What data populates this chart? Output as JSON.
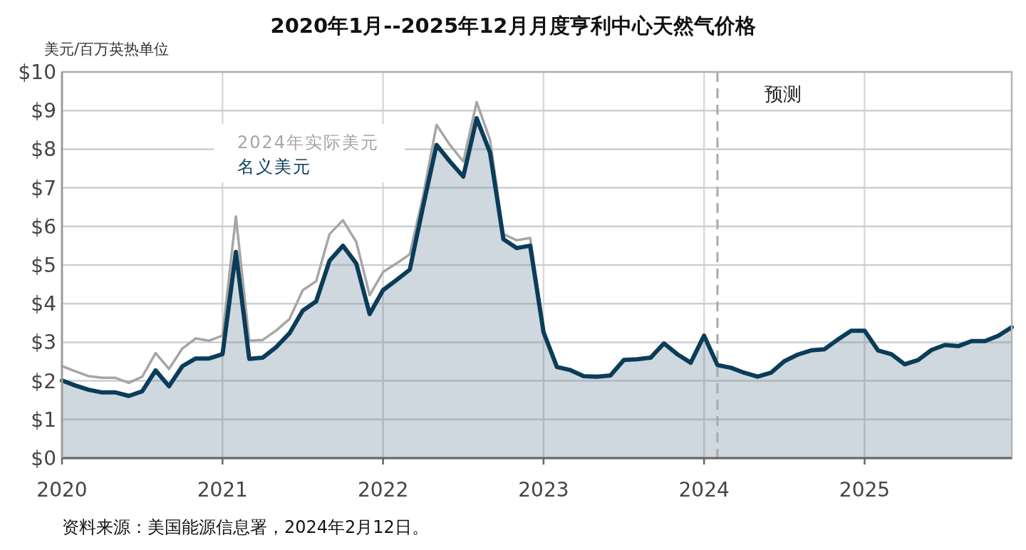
{
  "chart_data": {
    "type": "line",
    "title": "2020年1月--2025年12月月度亨利中心天然气价格",
    "ylabel": "美元/百万英热单位",
    "x": [
      "2020-01",
      "2020-02",
      "2020-03",
      "2020-04",
      "2020-05",
      "2020-06",
      "2020-07",
      "2020-08",
      "2020-09",
      "2020-10",
      "2020-11",
      "2020-12",
      "2021-01",
      "2021-02",
      "2021-03",
      "2021-04",
      "2021-05",
      "2021-06",
      "2021-07",
      "2021-08",
      "2021-09",
      "2021-10",
      "2021-11",
      "2021-12",
      "2022-01",
      "2022-02",
      "2022-03",
      "2022-04",
      "2022-05",
      "2022-06",
      "2022-07",
      "2022-08",
      "2022-09",
      "2022-10",
      "2022-11",
      "2022-12",
      "2023-01",
      "2023-02",
      "2023-03",
      "2023-04",
      "2023-05",
      "2023-06",
      "2023-07",
      "2023-08",
      "2023-09",
      "2023-10",
      "2023-11",
      "2023-12",
      "2024-01",
      "2024-02",
      "2024-03",
      "2024-04",
      "2024-05",
      "2024-06",
      "2024-07",
      "2024-08",
      "2024-09",
      "2024-10",
      "2024-11",
      "2024-12",
      "2025-01",
      "2025-02",
      "2025-03",
      "2025-04",
      "2025-05",
      "2025-06",
      "2025-07",
      "2025-08",
      "2025-09",
      "2025-10",
      "2025-11",
      "2025-12"
    ],
    "series": [
      {
        "name": "2024年实际美元",
        "color": "#a6a6a6",
        "values": [
          2.38,
          2.25,
          2.12,
          2.08,
          2.08,
          1.95,
          2.11,
          2.72,
          2.31,
          2.84,
          3.1,
          3.04,
          3.17,
          6.26,
          3.04,
          3.06,
          3.3,
          3.6,
          4.35,
          4.58,
          5.8,
          6.16,
          5.6,
          4.22,
          4.82,
          5.04,
          5.28,
          6.8,
          8.63,
          8.11,
          7.68,
          9.22,
          8.24,
          5.8,
          5.64,
          5.7,
          3.35,
          null,
          null,
          null,
          null,
          null,
          null,
          null,
          null,
          null,
          null,
          null,
          null,
          null,
          null,
          null,
          null,
          null,
          null,
          null,
          null,
          null,
          null,
          null,
          null,
          null,
          null,
          null,
          null,
          null,
          null,
          null,
          null,
          null,
          null,
          null
        ]
      },
      {
        "name": "名义美元",
        "type": "area",
        "color": "#0b3c5a",
        "values": [
          2.01,
          1.88,
          1.77,
          1.7,
          1.7,
          1.61,
          1.73,
          2.27,
          1.86,
          2.38,
          2.58,
          2.58,
          2.69,
          5.34,
          2.57,
          2.6,
          2.87,
          3.23,
          3.82,
          4.06,
          5.11,
          5.5,
          5.04,
          3.73,
          4.35,
          4.61,
          4.88,
          6.53,
          8.11,
          7.68,
          7.29,
          8.8,
          7.91,
          5.67,
          5.44,
          5.5,
          3.26,
          2.36,
          2.28,
          2.12,
          2.11,
          2.14,
          2.54,
          2.56,
          2.6,
          2.97,
          2.69,
          2.47,
          3.17,
          2.41,
          2.34,
          2.21,
          2.11,
          2.21,
          2.51,
          2.68,
          2.79,
          2.82,
          3.07,
          3.3,
          3.3,
          2.79,
          2.69,
          2.43,
          2.54,
          2.8,
          2.93,
          2.9,
          3.03,
          3.03,
          3.17,
          3.39
        ]
      }
    ],
    "xlim": [
      "2020-01",
      "2025-12"
    ],
    "xticks": [
      "2020",
      "2021",
      "2022",
      "2023",
      "2024",
      "2025"
    ],
    "ylim": [
      0,
      10
    ],
    "yticks": [
      {
        "value": 0,
        "label": "$0"
      },
      {
        "value": 1,
        "label": "$1"
      },
      {
        "value": 2,
        "label": "$2"
      },
      {
        "value": 3,
        "label": "$3"
      },
      {
        "value": 4,
        "label": "$4"
      },
      {
        "value": 5,
        "label": "$5"
      },
      {
        "value": 6,
        "label": "$6"
      },
      {
        "value": 7,
        "label": "$7"
      },
      {
        "value": 8,
        "label": "$8"
      },
      {
        "value": 9,
        "label": "$9"
      },
      {
        "value": 10,
        "label": "$10"
      }
    ],
    "grid": true,
    "line_style": "solid",
    "ref_lines": [
      {
        "axis": "x",
        "value": "2024-02",
        "label": "预测",
        "color": "#aaaaaa",
        "line_style": "dashed"
      }
    ],
    "annotations": [
      "资料来源：美国能源信息署，2024年2月12日。"
    ]
  }
}
